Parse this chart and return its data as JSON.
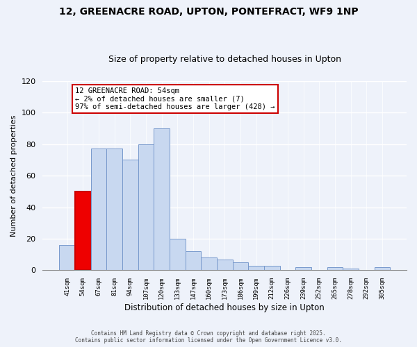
{
  "title": "12, GREENACRE ROAD, UPTON, PONTEFRACT, WF9 1NP",
  "subtitle": "Size of property relative to detached houses in Upton",
  "xlabel": "Distribution of detached houses by size in Upton",
  "ylabel": "Number of detached properties",
  "bar_labels": [
    "41sqm",
    "54sqm",
    "67sqm",
    "81sqm",
    "94sqm",
    "107sqm",
    "120sqm",
    "133sqm",
    "147sqm",
    "160sqm",
    "173sqm",
    "186sqm",
    "199sqm",
    "212sqm",
    "226sqm",
    "239sqm",
    "252sqm",
    "265sqm",
    "278sqm",
    "292sqm",
    "305sqm"
  ],
  "bar_values": [
    16,
    50,
    77,
    77,
    70,
    80,
    90,
    20,
    12,
    8,
    7,
    5,
    3,
    3,
    0,
    2,
    0,
    2,
    1,
    0,
    2
  ],
  "highlight_bar_index": 1,
  "bar_color": "#c8d8f0",
  "highlight_bar_color": "#ee0000",
  "bar_edge_color": "#7799cc",
  "highlight_edge_color": "#cc0000",
  "annotation_text": "12 GREENACRE ROAD: 54sqm\n← 2% of detached houses are smaller (7)\n97% of semi-detached houses are larger (428) →",
  "annotation_box_facecolor": "#ffffff",
  "annotation_box_edgecolor": "#cc0000",
  "ylim": [
    0,
    120
  ],
  "yticks": [
    0,
    20,
    40,
    60,
    80,
    100,
    120
  ],
  "footnote1": "Contains HM Land Registry data © Crown copyright and database right 2025.",
  "footnote2": "Contains public sector information licensed under the Open Government Licence v3.0.",
  "bg_color": "#eef2fa",
  "plot_bg_color": "#eef2fa",
  "grid_color": "#ffffff",
  "title_fontsize": 10,
  "subtitle_fontsize": 9
}
